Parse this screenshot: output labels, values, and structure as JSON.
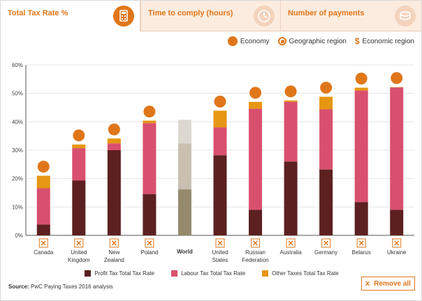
{
  "tabs": [
    {
      "label": "Total Tax Rate %",
      "icon": "calculator-icon"
    },
    {
      "label": "Time to comply (hours)",
      "icon": "clock-icon"
    },
    {
      "label": "Number of payments",
      "icon": "coins-icon"
    }
  ],
  "legend_top": {
    "economy": "Economy",
    "geographic_region": "Geographic region",
    "economic_region": "Economic region"
  },
  "legend_bottom": [
    {
      "label": "Profit Tax Total Tax Rate",
      "color": "#5c2020"
    },
    {
      "label": "Labour Tax Total Tax Rate",
      "color": "#d9506e"
    },
    {
      "label": "Other Taxes Total Tax Rate",
      "color": "#e69612"
    }
  ],
  "source": {
    "label": "Source:",
    "text": "PwC Paying Taxes 2016 analysis"
  },
  "remove_all": "Remove all",
  "remove_icon": "x",
  "colors": {
    "accent": "#e0761a",
    "profit": "#5c2020",
    "labour": "#d9506e",
    "other": "#e69612",
    "world_profit": "#958a6e",
    "world_labour": "#c9c0b1",
    "world_other": "#ddd8cf"
  },
  "chart_data": {
    "type": "bar",
    "stacked": true,
    "ylim": [
      0,
      60
    ],
    "yticks": [
      "0%",
      "10%",
      "20%",
      "30%",
      "40%",
      "50%",
      "60%"
    ],
    "grid": true,
    "categories": [
      [
        "Canada"
      ],
      [
        "United",
        "Kingdom"
      ],
      [
        "New",
        "Zealand"
      ],
      [
        "Poland"
      ],
      [
        "World"
      ],
      [
        "United",
        "States"
      ],
      [
        "Russian",
        "Federation"
      ],
      [
        "Australia"
      ],
      [
        "Germany"
      ],
      [
        "Belarus"
      ],
      [
        "Ukraine"
      ]
    ],
    "series": [
      {
        "name": "Profit Tax Total Tax Rate",
        "values": [
          3.8,
          19.3,
          30.0,
          14.5,
          16.2,
          28.2,
          9.0,
          26.0,
          23.2,
          11.7,
          9.0
        ]
      },
      {
        "name": "Labour Tax Total Tax Rate",
        "values": [
          12.8,
          11.4,
          2.4,
          25.0,
          16.2,
          9.8,
          35.6,
          21.0,
          21.2,
          39.3,
          43.1
        ]
      },
      {
        "name": "Other Taxes Total Tax Rate",
        "values": [
          4.4,
          1.3,
          1.7,
          0.9,
          8.3,
          5.9,
          2.4,
          0.5,
          4.4,
          1.0,
          0.1
        ]
      }
    ],
    "world_index": 4
  }
}
